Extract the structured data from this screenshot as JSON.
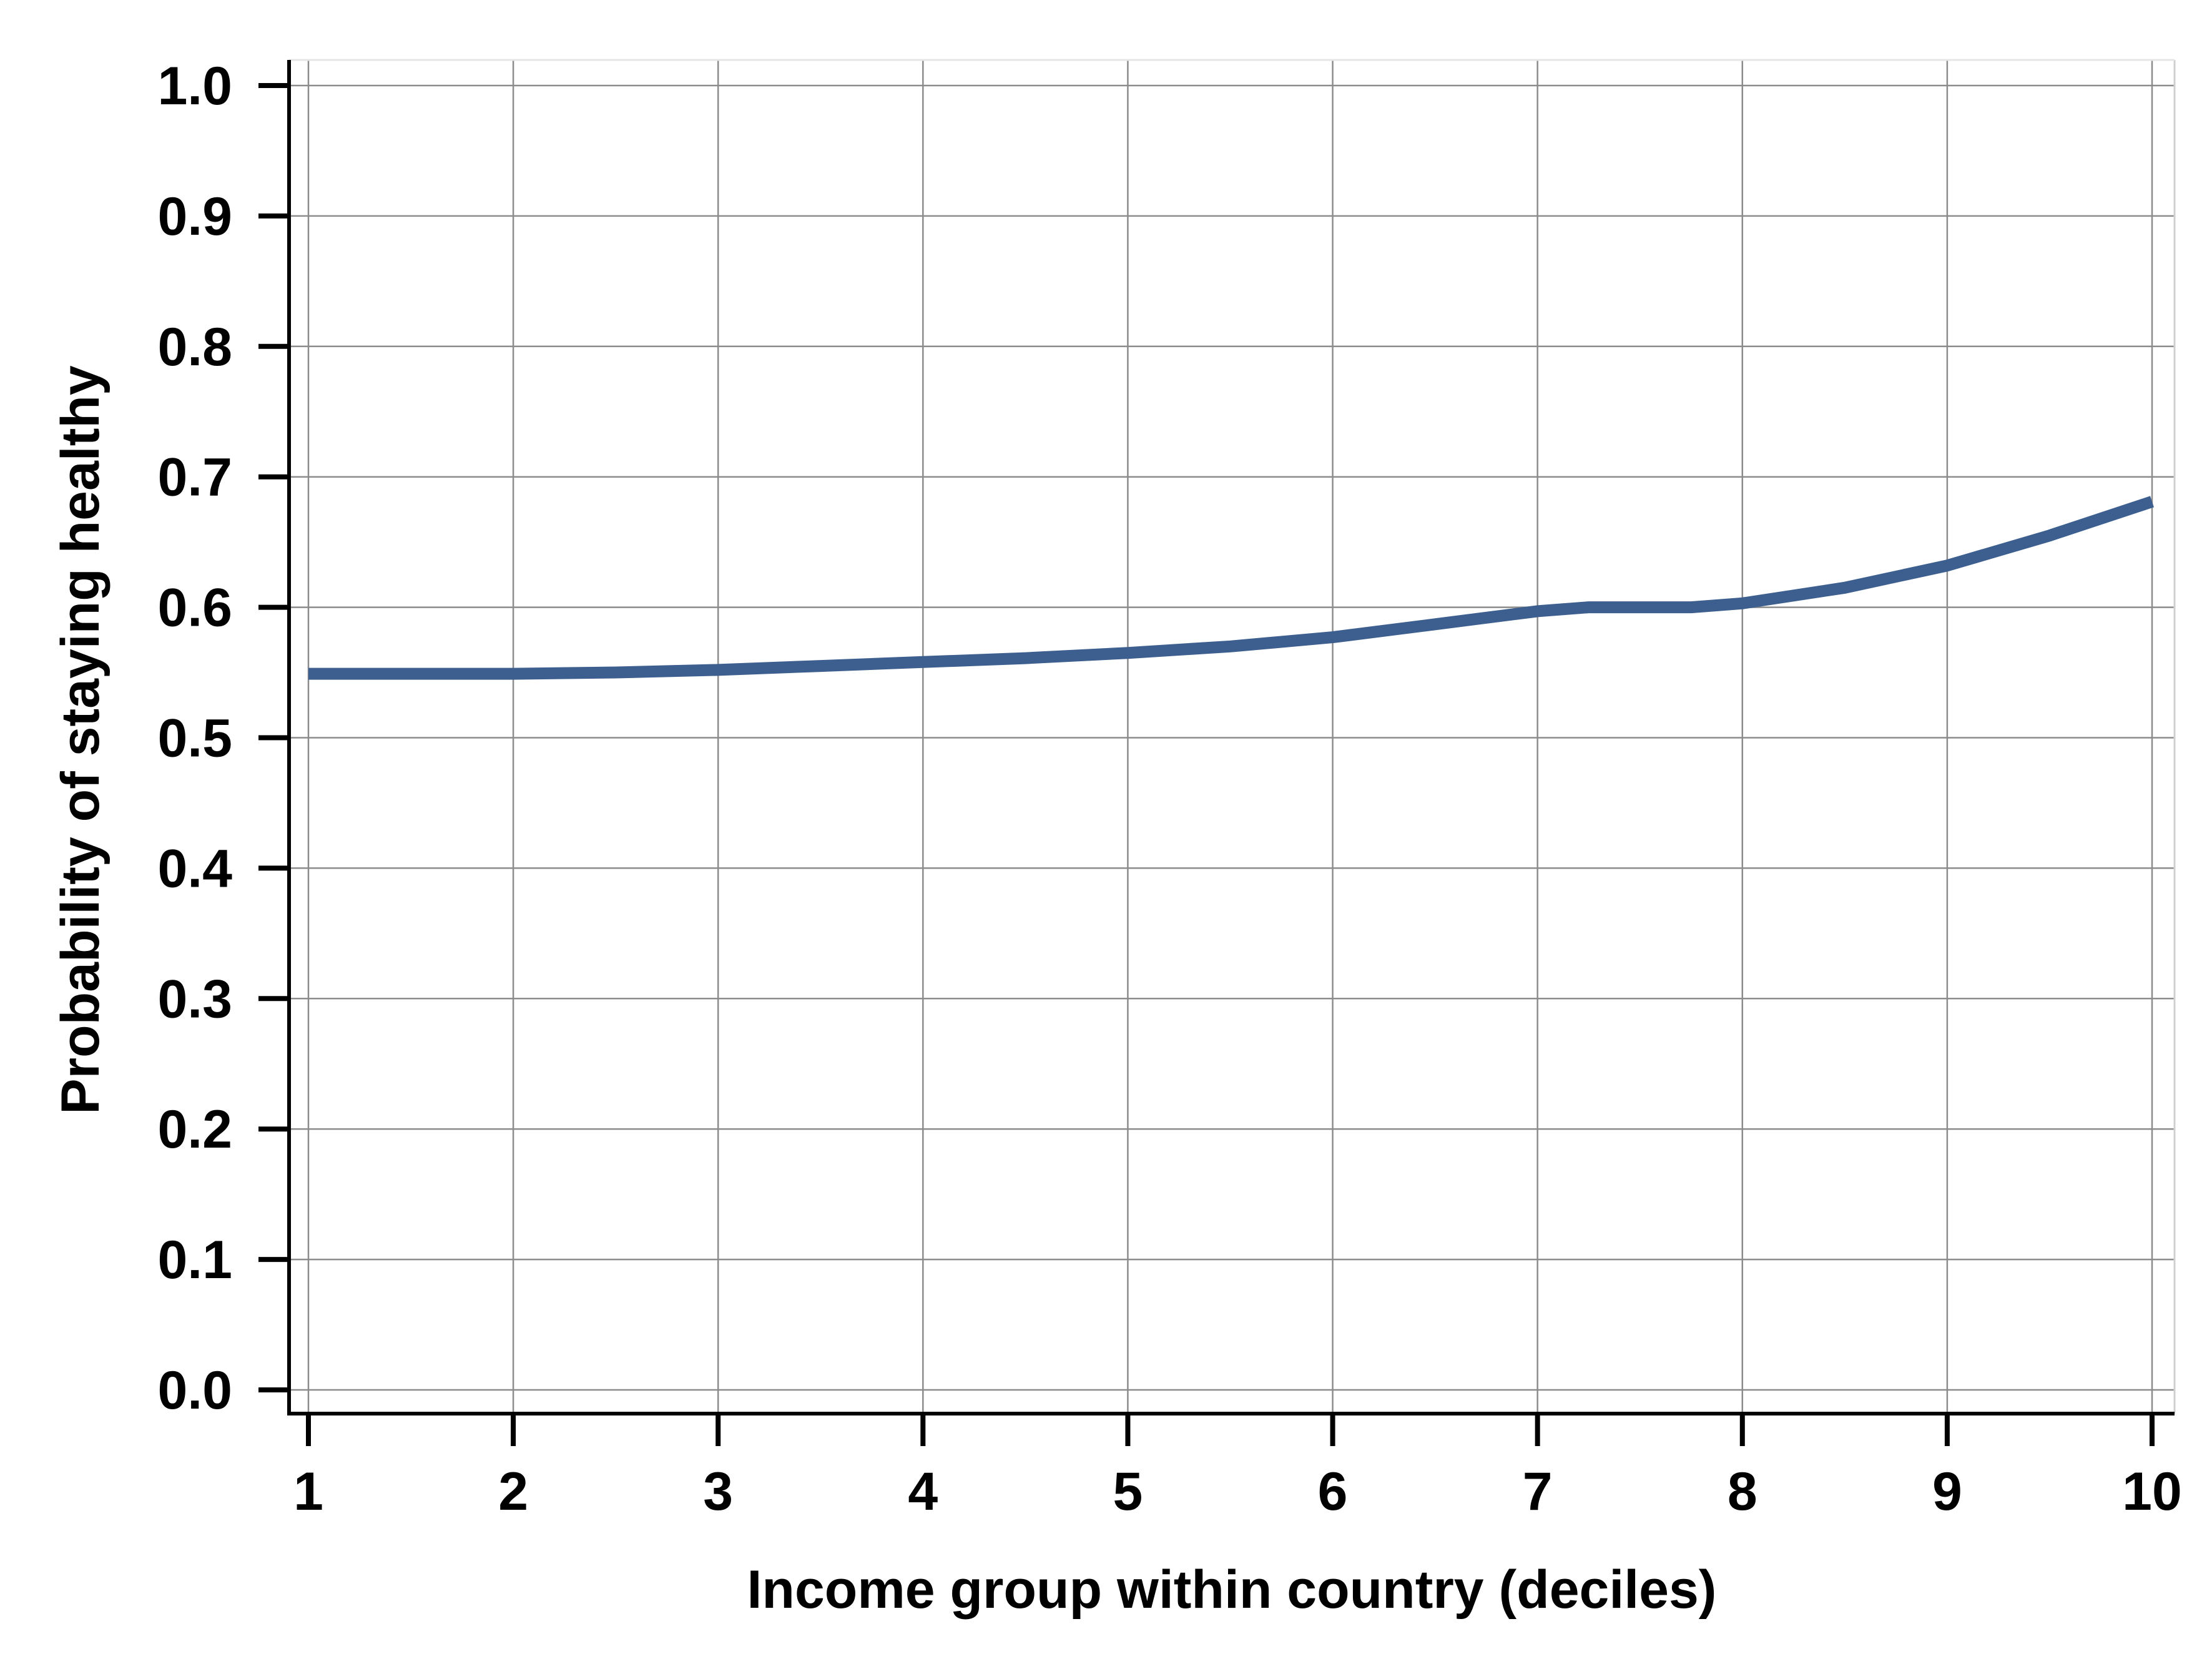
{
  "chart_data": {
    "type": "line",
    "title": "",
    "xlabel": "Income group within country (deciles)",
    "ylabel": "Probability of staying healthy",
    "x_ticks": [
      "1",
      "2",
      "3",
      "4",
      "5",
      "6",
      "7",
      "8",
      "9",
      "10"
    ],
    "y_ticks": [
      "0.0",
      "0.1",
      "0.2",
      "0.3",
      "0.4",
      "0.5",
      "0.6",
      "0.7",
      "0.8",
      "0.9",
      "1.0"
    ],
    "xlim": [
      1,
      10
    ],
    "ylim": [
      0,
      1
    ],
    "grid": true,
    "legend": "none",
    "series": [
      {
        "color": "#3d5f8f",
        "x": [
          1,
          1.5,
          2,
          2.5,
          3,
          3.5,
          4,
          4.5,
          5,
          5.5,
          6,
          6.5,
          7,
          7.25,
          7.5,
          7.75,
          8,
          8.5,
          9,
          9.5,
          10
        ],
        "y": [
          0.549,
          0.549,
          0.549,
          0.55,
          0.552,
          0.555,
          0.558,
          0.561,
          0.565,
          0.57,
          0.577,
          0.587,
          0.597,
          0.6,
          0.6,
          0.6,
          0.603,
          0.615,
          0.632,
          0.655,
          0.681
        ]
      }
    ]
  }
}
